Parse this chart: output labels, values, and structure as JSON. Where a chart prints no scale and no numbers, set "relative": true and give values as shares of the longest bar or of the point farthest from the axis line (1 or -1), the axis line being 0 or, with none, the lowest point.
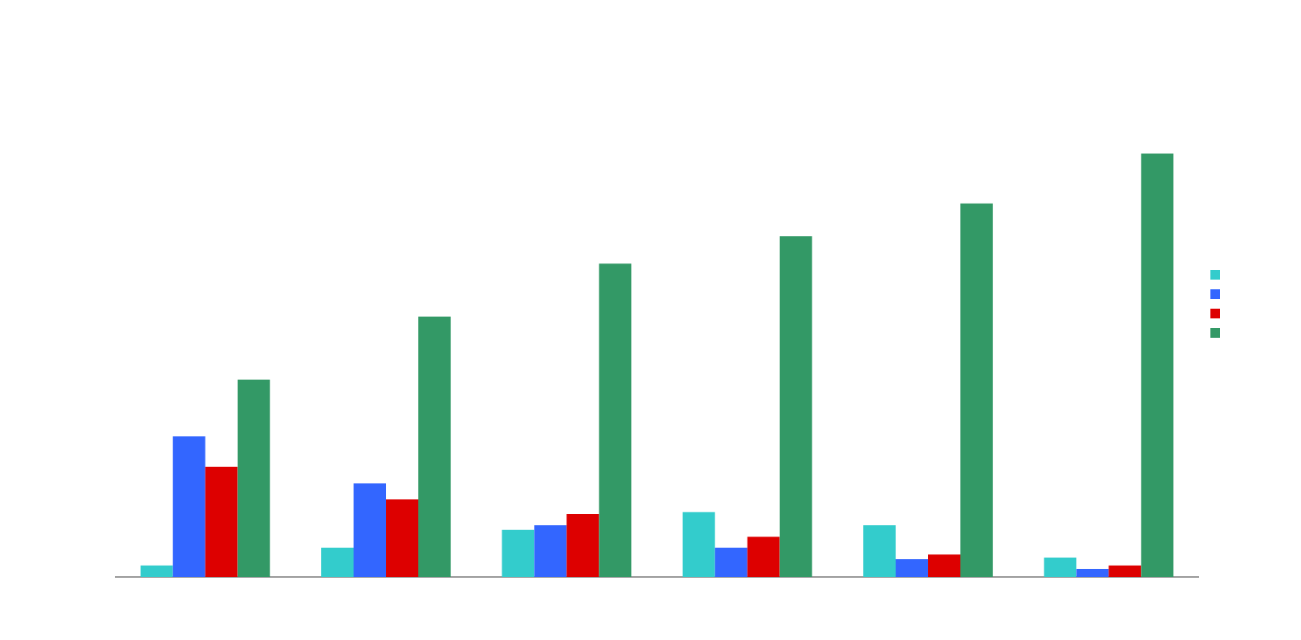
{
  "chart_data": {
    "type": "bar",
    "relative": true,
    "categories": [
      null,
      null,
      null,
      null,
      null,
      null
    ],
    "series": [
      {
        "color": "#33cccc",
        "values": [
          0.027,
          0.069,
          0.111,
          0.153,
          0.122,
          0.046
        ]
      },
      {
        "color": "#3366ff",
        "values": [
          0.332,
          0.221,
          0.122,
          0.069,
          0.042,
          0.019
        ]
      },
      {
        "color": "#dd0000",
        "values": [
          0.26,
          0.183,
          0.149,
          0.095,
          0.053,
          0.027
        ]
      },
      {
        "color": "#339966",
        "values": [
          0.466,
          0.615,
          0.74,
          0.805,
          0.882,
          1
        ]
      }
    ]
  }
}
